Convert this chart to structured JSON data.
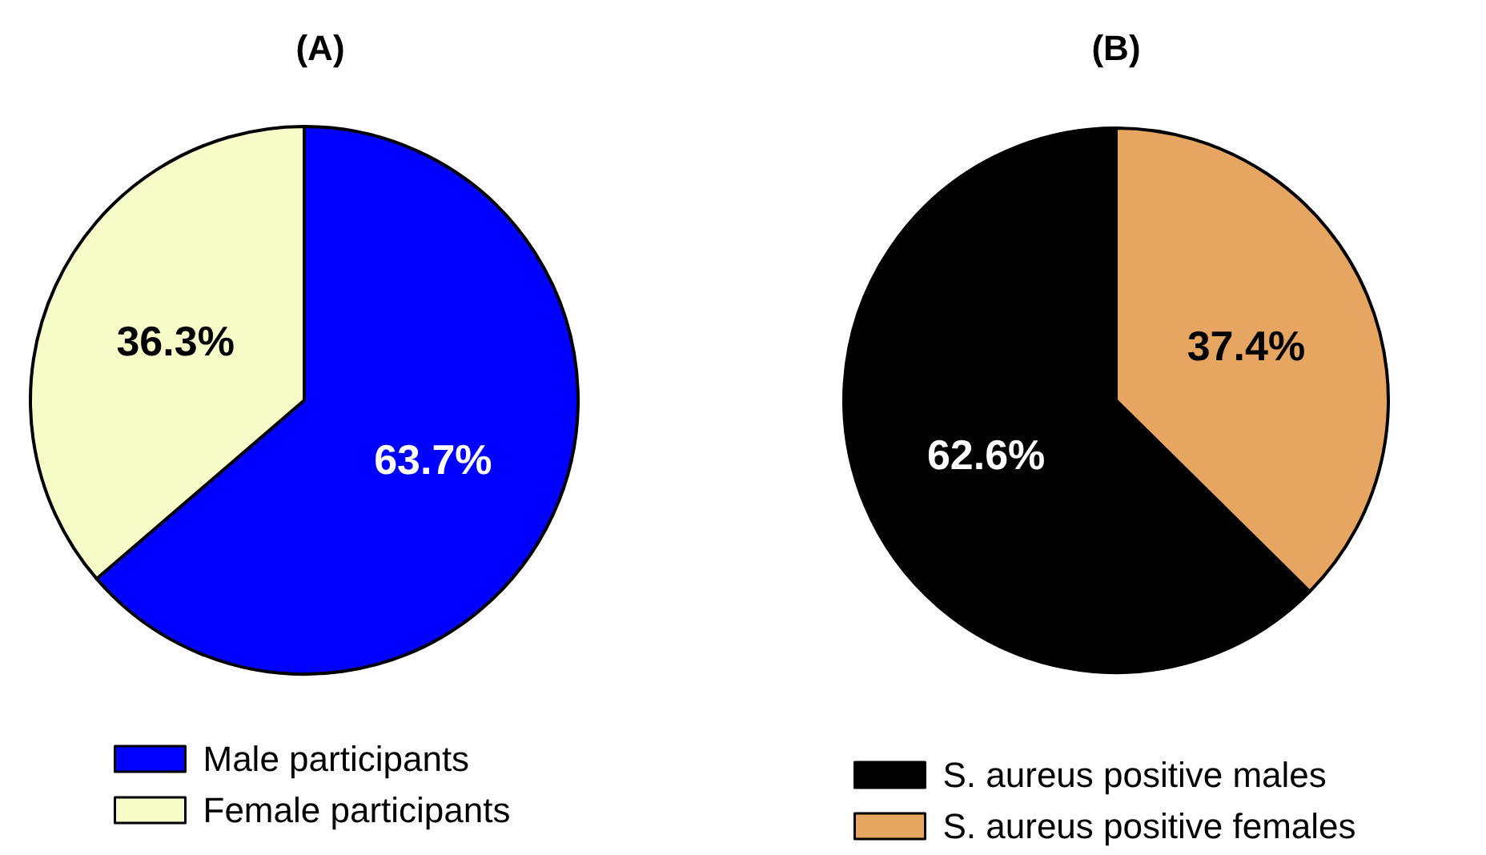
{
  "chart_data": [
    {
      "type": "pie",
      "title": "(A)",
      "categories": [
        "Male participants",
        "Female participants"
      ],
      "values": [
        63.7,
        36.3
      ],
      "colors": [
        "#0000ff",
        "#f7fdc9"
      ],
      "value_labels": [
        "63.7%",
        "36.3%"
      ],
      "legend": "bottom left"
    },
    {
      "type": "pie",
      "title": "(B)",
      "categories": [
        "S. aureus positive males",
        "S. aureus positive females"
      ],
      "values": [
        62.6,
        37.4
      ],
      "colors": [
        "#000000",
        "#e6a662"
      ],
      "value_labels": [
        "62.6%",
        "37.4%"
      ],
      "legend": "bottom left"
    }
  ]
}
